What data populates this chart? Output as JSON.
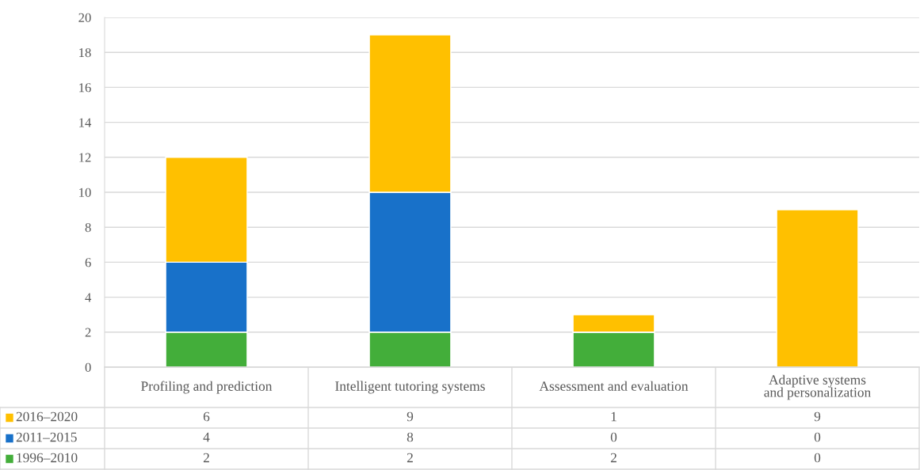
{
  "chart_data": {
    "type": "bar",
    "stacked": true,
    "categories": [
      "Profiling and prediction",
      "Intelligent tutoring systems",
      "Assessment and evaluation",
      "Adaptive systems and personalization"
    ],
    "series": [
      {
        "name": "1996–2010",
        "color": "#43ae3a",
        "values": [
          2,
          2,
          2,
          0
        ]
      },
      {
        "name": "2011–2015",
        "color": "#1871c9",
        "values": [
          4,
          8,
          0,
          0
        ]
      },
      {
        "name": "2016–2020",
        "color": "#ffc000",
        "values": [
          6,
          9,
          1,
          9
        ]
      }
    ],
    "ylim": [
      0,
      20
    ],
    "yticks": [
      0,
      2,
      4,
      6,
      8,
      10,
      12,
      14,
      16,
      18,
      20
    ],
    "grid": "y",
    "legend": "bottom",
    "data_labels": true
  }
}
